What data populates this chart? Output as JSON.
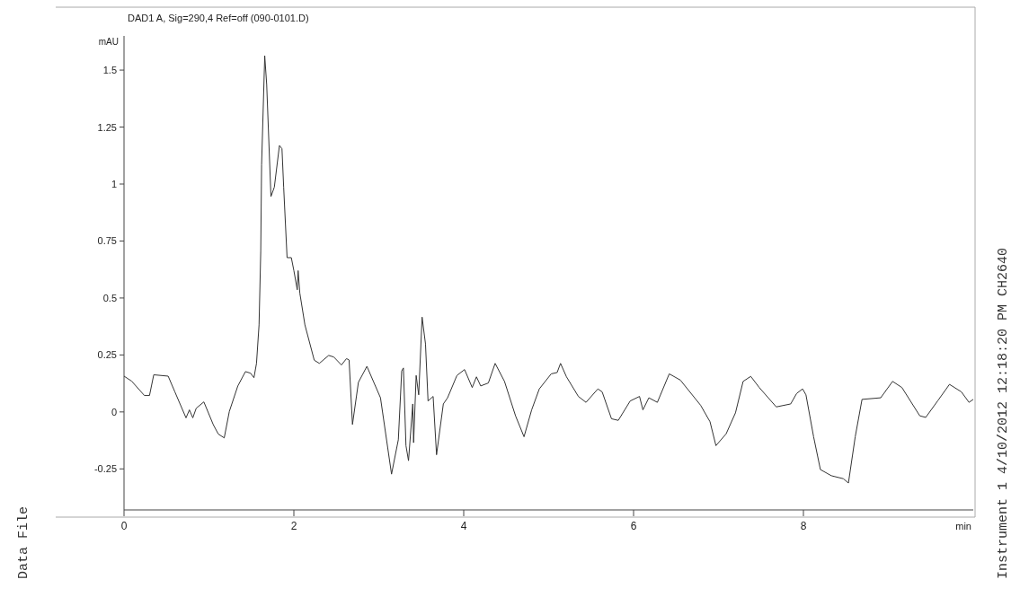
{
  "chart_data": {
    "type": "line",
    "title": "DAD1 A, Sig=290,4 Ref=off (090-0101.D)",
    "xlabel": "min",
    "ylabel": "mAU",
    "annotations": [
      "Data File",
      "Instrument 1 4/10/2012 12:18:20 PM CH2640"
    ],
    "xlim": [
      0,
      10
    ],
    "ylim": [
      -0.43,
      1.65
    ],
    "xticks": [
      0,
      2,
      4,
      6,
      8
    ],
    "yticks": [
      -0.25,
      0,
      0.25,
      0.5,
      0.75,
      1,
      1.25,
      1.5
    ],
    "grid": false,
    "series": [
      {
        "color": "#333333",
        "x": [
          0,
          0.09,
          0.24,
          0.3,
          0.35,
          0.52,
          0.6,
          0.73,
          0.77,
          0.81,
          0.85,
          0.94,
          1.05,
          1.11,
          1.18,
          1.24,
          1.34,
          1.43,
          1.49,
          1.53,
          1.56,
          1.59,
          1.61,
          1.62,
          1.657,
          1.68,
          1.73,
          1.77,
          1.83,
          1.86,
          1.88,
          1.92,
          1.97,
          2.0,
          2.04,
          2.05,
          2.07,
          2.13,
          2.24,
          2.3,
          2.41,
          2.47,
          2.56,
          2.62,
          2.65,
          2.69,
          2.76,
          2.86,
          3.02,
          3.15,
          3.23,
          3.27,
          3.29,
          3.32,
          3.35,
          3.4,
          3.41,
          3.44,
          3.47,
          3.51,
          3.55,
          3.58,
          3.64,
          3.68,
          3.76,
          3.81,
          3.92,
          4.01,
          4.1,
          4.15,
          4.2,
          4.29,
          4.37,
          4.48,
          4.61,
          4.71,
          4.8,
          4.89,
          5.03,
          5.1,
          5.14,
          5.21,
          5.35,
          5.44,
          5.58,
          5.63,
          5.74,
          5.82,
          5.96,
          6.07,
          6.11,
          6.18,
          6.28,
          6.42,
          6.55,
          6.79,
          6.9,
          6.97,
          7.09,
          7.2,
          7.29,
          7.38,
          7.48,
          7.68,
          7.85,
          7.92,
          7.99,
          8.03,
          8.12,
          8.2,
          8.33,
          8.47,
          8.53,
          8.61,
          8.69,
          8.91,
          9.05,
          9.16,
          9.37,
          9.44,
          9.58,
          9.72,
          9.86,
          9.95,
          10
        ],
        "values": [
          0.157,
          0.135,
          0.072,
          0.072,
          0.163,
          0.157,
          0.087,
          -0.026,
          0.009,
          -0.026,
          0.016,
          0.044,
          -0.055,
          -0.097,
          -0.114,
          0.002,
          0.114,
          0.177,
          0.17,
          0.15,
          0.213,
          0.382,
          0.705,
          1.084,
          1.563,
          1.437,
          0.945,
          0.986,
          1.169,
          1.155,
          0.986,
          0.677,
          0.677,
          0.62,
          0.536,
          0.62,
          0.522,
          0.382,
          0.227,
          0.213,
          0.248,
          0.241,
          0.206,
          0.234,
          0.228,
          -0.055,
          0.13,
          0.2,
          0.062,
          -0.273,
          -0.122,
          0.18,
          0.193,
          -0.148,
          -0.214,
          0.035,
          -0.135,
          0.16,
          0.075,
          0.416,
          0.298,
          0.048,
          0.068,
          -0.188,
          0.035,
          0.062,
          0.16,
          0.186,
          0.107,
          0.154,
          0.114,
          0.127,
          0.213,
          0.134,
          -0.017,
          -0.109,
          0.009,
          0.101,
          0.167,
          0.173,
          0.213,
          0.154,
          0.068,
          0.042,
          0.101,
          0.088,
          -0.03,
          -0.037,
          0.048,
          0.068,
          0.009,
          0.062,
          0.042,
          0.167,
          0.14,
          0.029,
          -0.043,
          -0.148,
          -0.096,
          -0.004,
          0.134,
          0.156,
          0.107,
          0.022,
          0.035,
          0.081,
          0.101,
          0.075,
          -0.109,
          -0.253,
          -0.28,
          -0.293,
          -0.312,
          -0.109,
          0.055,
          0.062,
          0.134,
          0.107,
          -0.017,
          -0.024,
          0.048,
          0.121,
          0.088,
          0.042,
          0.055
        ]
      }
    ]
  }
}
